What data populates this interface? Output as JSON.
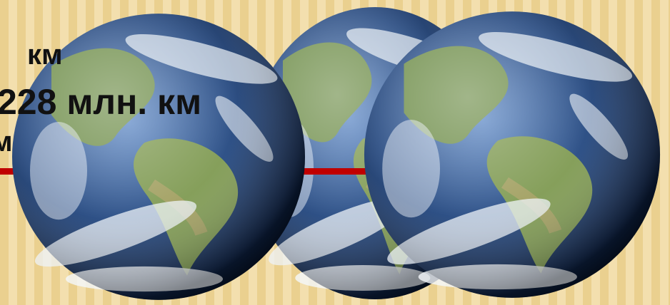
{
  "labels": {
    "top": "км",
    "distance": "228 млн. км",
    "partial": "м"
  }
}
